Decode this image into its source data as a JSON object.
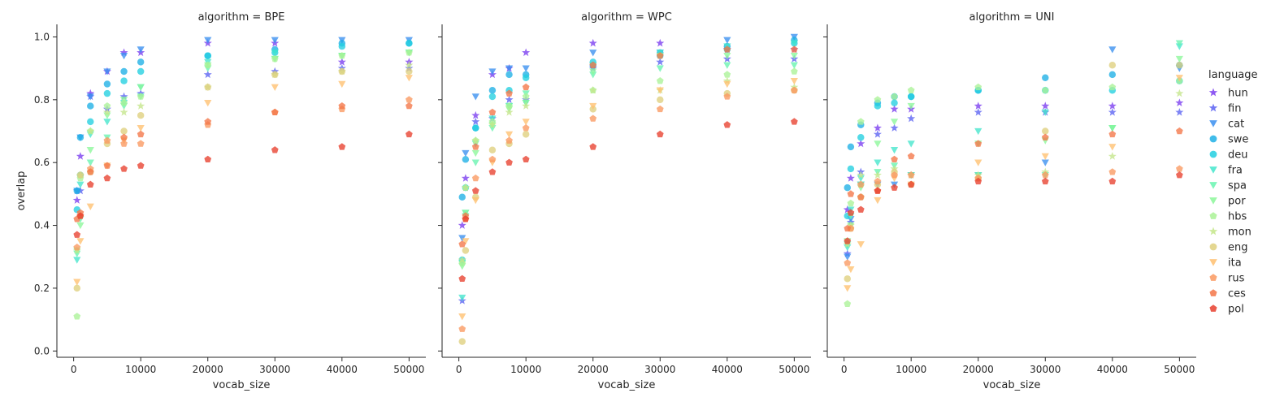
{
  "chart_data": {
    "type": "scatter",
    "xlabel": "vocab_size",
    "ylabel": "overlap",
    "xlim": [
      -2500,
      52500
    ],
    "ylim": [
      -0.02,
      1.04
    ],
    "xticks": [
      0,
      10000,
      20000,
      30000,
      40000,
      50000
    ],
    "yticks": [
      0.0,
      0.2,
      0.4,
      0.6,
      0.8,
      1.0
    ],
    "x": [
      500,
      1000,
      2500,
      5000,
      7500,
      10000,
      20000,
      30000,
      40000,
      50000
    ],
    "legend_title": "language",
    "legend_position": "right",
    "grid": false,
    "series_styles": [
      {
        "key": "hun",
        "label": "hun",
        "color": "#7a3cf0",
        "marker": "star"
      },
      {
        "key": "fin",
        "label": "fin",
        "color": "#5a62f2",
        "marker": "star"
      },
      {
        "key": "cat",
        "label": "cat",
        "color": "#3a8ff0",
        "marker": "triangle-down"
      },
      {
        "key": "swe",
        "label": "swe",
        "color": "#1eb0e6",
        "marker": "circle"
      },
      {
        "key": "deu",
        "label": "deu",
        "color": "#22cfe0",
        "marker": "circle"
      },
      {
        "key": "fra",
        "label": "fra",
        "color": "#44e6cc",
        "marker": "triangle-down"
      },
      {
        "key": "spa",
        "label": "spa",
        "color": "#68f4b0",
        "marker": "triangle-down"
      },
      {
        "key": "por",
        "label": "por",
        "color": "#8cf79a",
        "marker": "triangle-down"
      },
      {
        "key": "hbs",
        "label": "hbs",
        "color": "#aaf297",
        "marker": "pentagon"
      },
      {
        "key": "mon",
        "label": "mon",
        "color": "#c4e68a",
        "marker": "star"
      },
      {
        "key": "eng",
        "label": "eng",
        "color": "#dfd07e",
        "marker": "circle"
      },
      {
        "key": "ita",
        "label": "ita",
        "color": "#ffc070",
        "marker": "triangle-down"
      },
      {
        "key": "rus",
        "label": "rus",
        "color": "#fa9960",
        "marker": "pentagon"
      },
      {
        "key": "ces",
        "label": "ces",
        "color": "#f37648",
        "marker": "pentagon"
      },
      {
        "key": "pol",
        "label": "pol",
        "color": "#e8402e",
        "marker": "pentagon"
      }
    ],
    "panels": [
      {
        "title": "algorithm = BPE",
        "series": [
          {
            "key": "hun",
            "values": [
              0.48,
              0.62,
              0.82,
              0.89,
              0.95,
              0.95,
              0.98,
              0.98,
              0.92,
              0.92
            ]
          },
          {
            "key": "fin",
            "values": [
              0.51,
              0.51,
              0.81,
              0.77,
              0.81,
              0.82,
              0.88,
              0.89,
              0.9,
              0.9
            ]
          },
          {
            "key": "cat",
            "values": [
              0.51,
              0.68,
              0.81,
              0.89,
              0.94,
              0.96,
              0.99,
              0.99,
              0.99,
              0.99
            ]
          },
          {
            "key": "swe",
            "values": [
              0.51,
              0.68,
              0.78,
              0.85,
              0.89,
              0.92,
              0.94,
              0.96,
              0.98,
              0.98
            ]
          },
          {
            "key": "deu",
            "values": [
              0.45,
              0.56,
              0.73,
              0.82,
              0.86,
              0.89,
              0.94,
              0.95,
              0.97,
              0.98
            ]
          },
          {
            "key": "fra",
            "values": [
              0.29,
              0.53,
              0.69,
              0.73,
              0.79,
              0.84,
              0.92,
              0.95,
              0.94,
              0.95
            ]
          },
          {
            "key": "spa",
            "values": [
              0.31,
              0.42,
              0.6,
              0.68,
              0.78,
              0.81,
              0.9,
              0.93,
              0.94,
              0.95
            ]
          },
          {
            "key": "por",
            "values": [
              0.32,
              0.4,
              0.64,
              0.75,
              0.8,
              0.84,
              0.91,
              0.93,
              0.94,
              0.95
            ]
          },
          {
            "key": "hbs",
            "values": [
              0.11,
              0.55,
              0.7,
              0.78,
              0.79,
              0.81,
              0.91,
              0.93,
              0.94,
              0.95
            ]
          },
          {
            "key": "mon",
            "values": [
              0.32,
              0.56,
              0.7,
              0.76,
              0.76,
              0.78,
              0.84,
              0.88,
              0.89,
              0.91
            ]
          },
          {
            "key": "eng",
            "values": [
              0.2,
              0.56,
              0.57,
              0.66,
              0.7,
              0.75,
              0.84,
              0.88,
              0.89,
              0.89
            ]
          },
          {
            "key": "ita",
            "values": [
              0.22,
              0.35,
              0.46,
              0.59,
              0.67,
              0.71,
              0.79,
              0.84,
              0.85,
              0.87
            ]
          },
          {
            "key": "rus",
            "values": [
              0.33,
              0.43,
              0.58,
              0.67,
              0.66,
              0.66,
              0.72,
              0.76,
              0.77,
              0.8
            ]
          },
          {
            "key": "ces",
            "values": [
              0.42,
              0.44,
              0.57,
              0.59,
              0.68,
              0.69,
              0.73,
              0.76,
              0.78,
              0.78
            ]
          },
          {
            "key": "pol",
            "values": [
              0.37,
              0.43,
              0.53,
              0.55,
              0.58,
              0.59,
              0.61,
              0.64,
              0.65,
              0.69
            ]
          }
        ]
      },
      {
        "title": "algorithm = WPC",
        "series": [
          {
            "key": "hun",
            "values": [
              0.4,
              0.55,
              0.75,
              0.88,
              0.9,
              0.95,
              0.98,
              0.98,
              0.96,
              0.96
            ]
          },
          {
            "key": "fin",
            "values": [
              0.16,
              0.52,
              0.73,
              0.74,
              0.8,
              0.8,
              0.9,
              0.92,
              0.93,
              0.93
            ]
          },
          {
            "key": "cat",
            "values": [
              0.36,
              0.63,
              0.81,
              0.89,
              0.9,
              0.9,
              0.95,
              0.95,
              0.99,
              1.0
            ]
          },
          {
            "key": "swe",
            "values": [
              0.49,
              0.61,
              0.71,
              0.83,
              0.88,
              0.88,
              0.91,
              0.95,
              0.97,
              0.99
            ]
          },
          {
            "key": "deu",
            "values": [
              0.29,
              0.52,
              0.71,
              0.81,
              0.83,
              0.87,
              0.92,
              0.94,
              0.96,
              0.98
            ]
          },
          {
            "key": "fra",
            "values": [
              0.17,
              0.44,
              0.66,
              0.74,
              0.78,
              0.79,
              0.91,
              0.95,
              0.97,
              0.98
            ]
          },
          {
            "key": "spa",
            "values": [
              0.28,
              0.43,
              0.6,
              0.71,
              0.78,
              0.82,
              0.88,
              0.9,
              0.91,
              0.91
            ]
          },
          {
            "key": "por",
            "values": [
              0.27,
              0.44,
              0.63,
              0.72,
              0.77,
              0.79,
              0.89,
              0.94,
              0.94,
              0.94
            ]
          },
          {
            "key": "hbs",
            "values": [
              0.28,
              0.52,
              0.67,
              0.73,
              0.78,
              0.81,
              0.83,
              0.86,
              0.88,
              0.89
            ]
          },
          {
            "key": "mon",
            "values": [
              0.29,
              0.52,
              0.67,
              0.72,
              0.76,
              0.78,
              0.83,
              0.83,
              0.86,
              0.84
            ]
          },
          {
            "key": "eng",
            "values": [
              0.03,
              0.32,
              0.49,
              0.64,
              0.66,
              0.69,
              0.77,
              0.8,
              0.82,
              0.83
            ]
          },
          {
            "key": "ita",
            "values": [
              0.11,
              0.35,
              0.48,
              0.6,
              0.69,
              0.73,
              0.78,
              0.83,
              0.85,
              0.86
            ]
          },
          {
            "key": "rus",
            "values": [
              0.07,
              0.42,
              0.55,
              0.61,
              0.67,
              0.71,
              0.74,
              0.77,
              0.81,
              0.83
            ]
          },
          {
            "key": "ces",
            "values": [
              0.34,
              0.43,
              0.65,
              0.76,
              0.82,
              0.84,
              0.91,
              0.94,
              0.96,
              0.96
            ]
          },
          {
            "key": "pol",
            "values": [
              0.23,
              0.42,
              0.51,
              0.57,
              0.6,
              0.61,
              0.65,
              0.69,
              0.72,
              0.73
            ]
          }
        ]
      },
      {
        "title": "algorithm = UNI",
        "series": [
          {
            "key": "hun",
            "values": [
              0.45,
              0.55,
              0.66,
              0.71,
              0.77,
              0.77,
              0.78,
              0.78,
              0.78,
              0.79
            ]
          },
          {
            "key": "fin",
            "values": [
              0.31,
              0.41,
              0.57,
              0.69,
              0.71,
              0.74,
              0.76,
              0.76,
              0.76,
              0.76
            ]
          },
          {
            "key": "cat",
            "values": [
              0.3,
              0.42,
              0.53,
              0.53,
              0.53,
              0.56,
              0.56,
              0.6,
              0.96,
              0.9
            ]
          },
          {
            "key": "swe",
            "values": [
              0.52,
              0.65,
              0.72,
              0.79,
              0.81,
              0.81,
              0.83,
              0.87,
              0.88,
              0.91
            ]
          },
          {
            "key": "deu",
            "values": [
              0.43,
              0.58,
              0.68,
              0.78,
              0.79,
              0.81,
              0.83,
              0.83,
              0.83,
              0.86
            ]
          },
          {
            "key": "fra",
            "values": [
              0.33,
              0.45,
              0.55,
              0.6,
              0.64,
              0.66,
              0.7,
              0.76,
              0.71,
              0.97
            ]
          },
          {
            "key": "spa",
            "values": [
              0.34,
              0.43,
              0.53,
              0.57,
              0.59,
              0.56,
              0.56,
              0.56,
              0.71,
              0.98
            ]
          },
          {
            "key": "por",
            "values": [
              0.35,
              0.4,
              0.52,
              0.66,
              0.73,
              0.78,
              0.66,
              0.67,
              0.71,
              0.93
            ]
          },
          {
            "key": "hbs",
            "values": [
              0.15,
              0.47,
              0.73,
              0.8,
              0.81,
              0.83,
              0.84,
              0.83,
              0.84,
              0.86
            ]
          },
          {
            "key": "mon",
            "values": [
              0.34,
              0.4,
              0.56,
              0.56,
              0.58,
              0.56,
              0.56,
              0.57,
              0.62,
              0.82
            ]
          },
          {
            "key": "eng",
            "values": [
              0.23,
              0.39,
              0.49,
              0.53,
              0.57,
              0.53,
              0.55,
              0.7,
              0.91,
              0.91
            ]
          },
          {
            "key": "ita",
            "values": [
              0.2,
              0.26,
              0.34,
              0.48,
              0.55,
              0.53,
              0.6,
              0.62,
              0.65,
              0.87
            ]
          },
          {
            "key": "rus",
            "values": [
              0.28,
              0.39,
              0.53,
              0.54,
              0.56,
              0.56,
              0.55,
              0.56,
              0.57,
              0.58
            ]
          },
          {
            "key": "ces",
            "values": [
              0.39,
              0.5,
              0.49,
              0.51,
              0.61,
              0.62,
              0.66,
              0.68,
              0.69,
              0.7
            ]
          },
          {
            "key": "pol",
            "values": [
              0.35,
              0.44,
              0.45,
              0.51,
              0.52,
              0.53,
              0.54,
              0.54,
              0.54,
              0.56
            ]
          }
        ]
      }
    ]
  }
}
